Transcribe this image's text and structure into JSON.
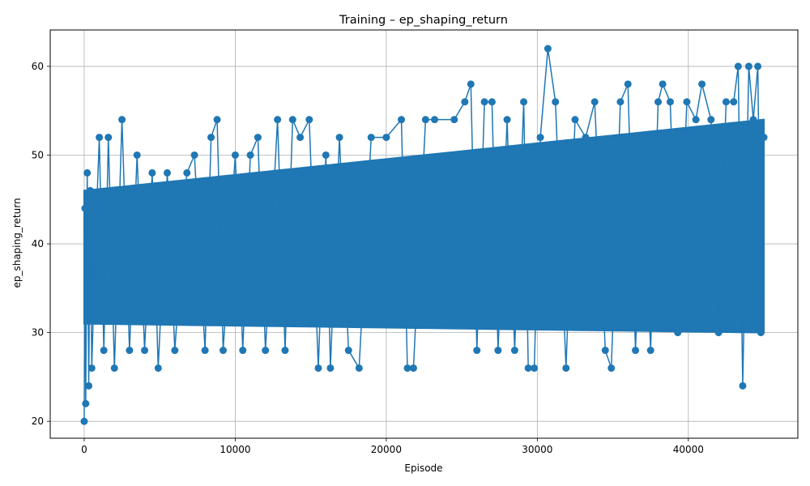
{
  "chart_data": {
    "type": "line",
    "title": "Training – ep_shaping_return",
    "xlabel": "Episode",
    "ylabel": "ep_shaping_return",
    "xlim": [
      -2250,
      47250
    ],
    "ylim": [
      18.1,
      64.1
    ],
    "xticks": [
      0,
      10000,
      20000,
      30000,
      40000
    ],
    "yticks": [
      20,
      30,
      40,
      50,
      60
    ],
    "grid": true,
    "line_color": "#1f77b4",
    "marker": "circle",
    "series": [
      {
        "values_note": "noisy per-episode values oscillating mostly between ~28 and ~54",
        "x": [
          0,
          50,
          100,
          200,
          300,
          400,
          500,
          700,
          1000,
          1300,
          1600,
          2000,
          2500,
          3000,
          3500,
          4000,
          4500,
          4900,
          5500,
          6000,
          6800,
          7300,
          8000,
          8400,
          8800,
          9200,
          10000,
          10500,
          11000,
          11500,
          12000,
          12800,
          13300,
          13800,
          14300,
          14900,
          15500,
          16000,
          16300,
          16900,
          17500,
          18200,
          19000,
          20000,
          21000,
          21400,
          21800,
          22600,
          23200,
          24500,
          25200,
          25600,
          26000,
          26500,
          27000,
          27400,
          28000,
          28500,
          29100,
          29400,
          29800,
          30200,
          30700,
          31200,
          31900,
          32500,
          33200,
          33800,
          34500,
          34900,
          35500,
          36000,
          36500,
          37000,
          37500,
          38000,
          38300,
          38800,
          39300,
          39900,
          40500,
          40900,
          41500,
          42000,
          42500,
          43000,
          43300,
          43600,
          44000,
          44300,
          44600,
          44800,
          45000
        ],
        "y": [
          20,
          44,
          22,
          48,
          24,
          46,
          26,
          38,
          52,
          28,
          52,
          26,
          54,
          28,
          50,
          28,
          48,
          26,
          48,
          28,
          48,
          50,
          28,
          52,
          54,
          28,
          50,
          28,
          50,
          52,
          28,
          54,
          28,
          54,
          52,
          54,
          26,
          50,
          26,
          52,
          28,
          26,
          52,
          52,
          54,
          26,
          26,
          54,
          54,
          54,
          56,
          58,
          28,
          56,
          56,
          28,
          54,
          28,
          56,
          26,
          26,
          52,
          62,
          56,
          26,
          54,
          52,
          56,
          28,
          26,
          56,
          58,
          28,
          52,
          28,
          56,
          58,
          56,
          30,
          56,
          54,
          58,
          54,
          30,
          56,
          56,
          60,
          24,
          60,
          54,
          60,
          30,
          52
        ]
      }
    ]
  }
}
